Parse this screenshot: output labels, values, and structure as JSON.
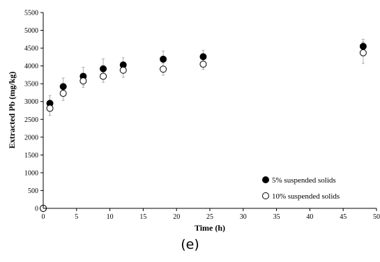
{
  "chart_data": {
    "type": "scatter",
    "xlabel": "Time (h)",
    "ylabel": "Extracted Pb (mg/kg)",
    "xlim": [
      0,
      50
    ],
    "ylim": [
      0,
      5500
    ],
    "x_ticks": [
      0,
      5,
      10,
      15,
      20,
      25,
      30,
      35,
      40,
      45,
      50
    ],
    "y_ticks": [
      0,
      500,
      1000,
      1500,
      2000,
      2500,
      3000,
      3500,
      4000,
      4500,
      5000,
      5500
    ],
    "x_tick_labels": [
      "0",
      "5",
      "10",
      "15",
      "20",
      "25",
      "30",
      "35",
      "40",
      "45",
      "50"
    ],
    "y_tick_labels": [
      "0",
      "500",
      "1000",
      "1500",
      "2000",
      "2500",
      "3000",
      "3500",
      "4000",
      "4500",
      "5000",
      "5500"
    ],
    "grid": false,
    "legend_position": "bottom-right",
    "series": [
      {
        "name": "5% suspended solids",
        "marker": "filled-circle",
        "color": "#000000",
        "x": [
          0,
          1,
          3,
          6,
          9,
          12,
          18,
          24,
          48
        ],
        "y": [
          0,
          2950,
          3420,
          3710,
          3920,
          4030,
          4190,
          4260,
          4550
        ],
        "error": [
          0,
          220,
          240,
          250,
          280,
          200,
          230,
          180,
          200
        ]
      },
      {
        "name": "10% suspended solids",
        "marker": "open-circle",
        "color": "#000000",
        "x": [
          0,
          1,
          3,
          6,
          9,
          12,
          18,
          24,
          48
        ],
        "y": [
          0,
          2810,
          3230,
          3580,
          3710,
          3880,
          3910,
          4050,
          4370
        ],
        "error": [
          0,
          200,
          200,
          180,
          170,
          200,
          170,
          150,
          300
        ]
      }
    ]
  },
  "caption": "(e)"
}
